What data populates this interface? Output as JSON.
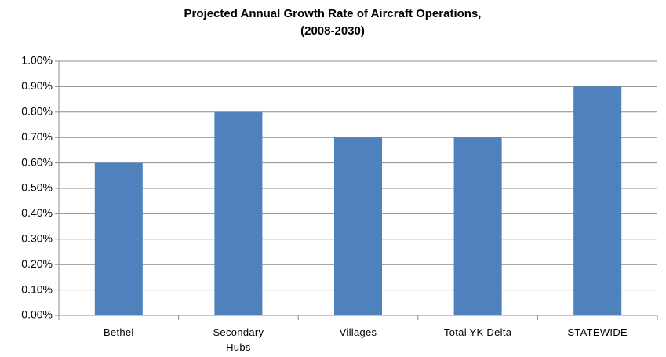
{
  "chart_data": {
    "type": "bar",
    "title": [
      "Projected Annual Growth Rate of Aircraft Operations,",
      "(2008-2030)"
    ],
    "categories": [
      "Bethel",
      "Secondary Hubs",
      "Villages",
      "Total YK Delta",
      "STATEWIDE"
    ],
    "values": [
      0.6,
      0.8,
      0.7,
      0.7,
      0.9
    ],
    "color": "#4f81bd",
    "ylim": [
      0,
      1
    ],
    "yticks": [
      {
        "value": 0,
        "label": "0.00%"
      },
      {
        "value": 0.1,
        "label": "0.10%"
      },
      {
        "value": 0.2,
        "label": "0.20%"
      },
      {
        "value": 0.3,
        "label": "0.30%"
      },
      {
        "value": 0.4,
        "label": "0.40%"
      },
      {
        "value": 0.5,
        "label": "0.50%"
      },
      {
        "value": 0.6,
        "label": "0.60%"
      },
      {
        "value": 0.7,
        "label": "0.70%"
      },
      {
        "value": 0.8,
        "label": "0.80%"
      },
      {
        "value": 0.9,
        "label": "0.90%"
      },
      {
        "value": 1,
        "label": "1.00%"
      }
    ],
    "grid": true
  }
}
